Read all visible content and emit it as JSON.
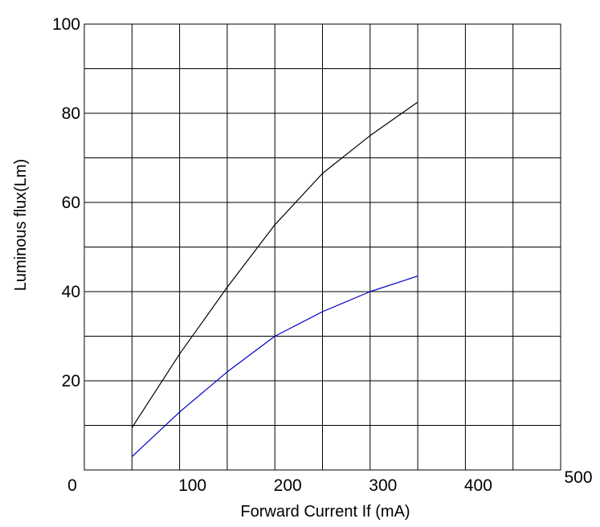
{
  "chart_data": {
    "type": "line",
    "title": "",
    "xlabel": "Forward Current  If (mA)",
    "ylabel": "Luminous flux(Lm)",
    "xlim": [
      0,
      500
    ],
    "ylim": [
      0,
      100
    ],
    "x_ticks": [
      "0",
      "100",
      "200",
      "300",
      "400",
      "500"
    ],
    "y_ticks": [
      "20",
      "40",
      "60",
      "80",
      "100"
    ],
    "grid": true,
    "legend": "none",
    "series": [
      {
        "color": "#000000",
        "x": [
          50,
          100,
          150,
          200,
          250,
          300,
          350
        ],
        "y": [
          9.5,
          26,
          41,
          55,
          66.5,
          75,
          82.5
        ]
      },
      {
        "color": "#0000cc",
        "x": [
          50,
          100,
          150,
          200,
          250,
          300,
          350
        ],
        "y": [
          3,
          13,
          22,
          30,
          35.5,
          40,
          43.5
        ]
      }
    ]
  }
}
